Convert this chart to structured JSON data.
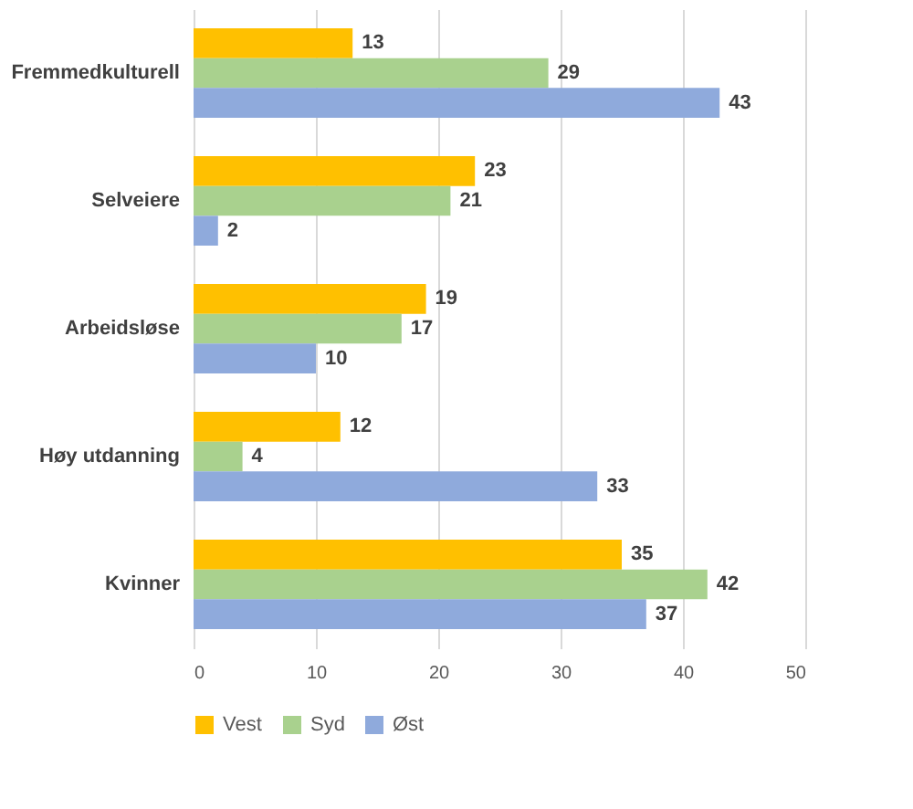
{
  "chart_data": {
    "type": "bar",
    "orientation": "horizontal",
    "categories": [
      "Fremmedkulturell",
      "Selveiere",
      "Arbeidsløse",
      "Høy utdanning",
      "Kvinner"
    ],
    "series": [
      {
        "name": "Vest",
        "color": "#ffc000",
        "values": [
          13,
          23,
          19,
          12,
          35
        ]
      },
      {
        "name": "Syd",
        "color": "#a9d18e",
        "values": [
          29,
          21,
          17,
          4,
          42
        ]
      },
      {
        "name": "Øst",
        "color": "#8faadc",
        "values": [
          43,
          2,
          10,
          33,
          37
        ]
      }
    ],
    "xlim": [
      0,
      50
    ],
    "xticks": [
      0,
      10,
      20,
      30,
      40,
      50
    ],
    "grid": "x",
    "legend": "bottom",
    "data_labels": true
  }
}
